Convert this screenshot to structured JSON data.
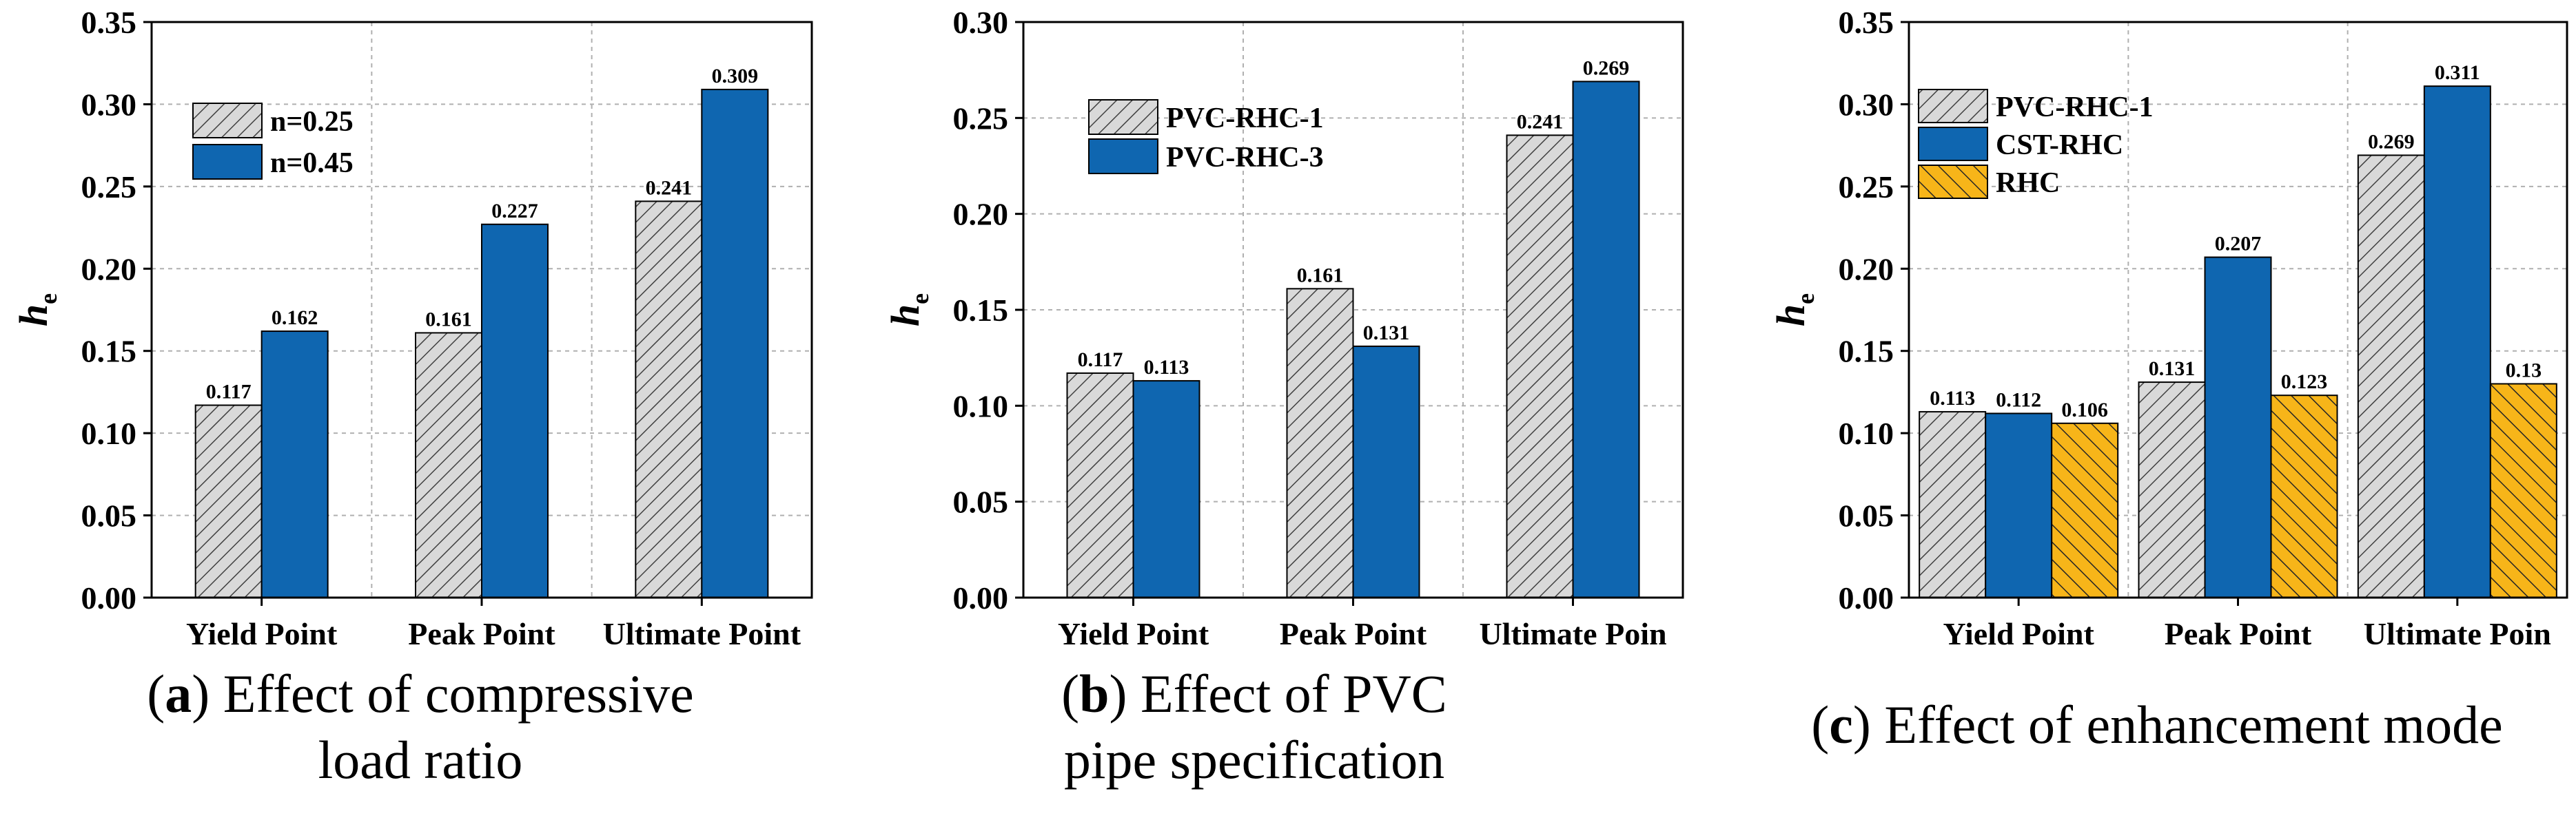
{
  "colors": {
    "hatch_bg": "#d9d9d9",
    "hatch_line": "#404040",
    "blue": "#0f66b0",
    "orange": "#f7b519",
    "orange_line": "#262626",
    "grid": "#b0b0b0"
  },
  "chart_data": [
    {
      "type": "bar",
      "ylabel": "h",
      "ylabel_sub": "e",
      "ylim": [
        0,
        0.35
      ],
      "yticks": [
        "0.00",
        "0.05",
        "0.10",
        "0.15",
        "0.20",
        "0.25",
        "0.30",
        "0.35"
      ],
      "categories": [
        "Yield Point",
        "Peak Point",
        "Ultimate Point"
      ],
      "series": [
        {
          "name": "n=0.25",
          "style": "gray-hatch",
          "values": [
            0.117,
            0.161,
            0.241
          ],
          "labels": [
            "0.117",
            "0.161",
            "0.241"
          ]
        },
        {
          "name": "n=0.45",
          "style": "blue",
          "values": [
            0.162,
            0.227,
            0.309
          ],
          "labels": [
            "0.162",
            "0.227",
            "0.309"
          ]
        }
      ],
      "legend_position": "top-left",
      "caption": {
        "letter": "a",
        "line1": " Effect of compressive",
        "line2": "load ratio"
      }
    },
    {
      "type": "bar",
      "ylabel": "h",
      "ylabel_sub": "e",
      "ylim": [
        0,
        0.3
      ],
      "yticks": [
        "0.00",
        "0.05",
        "0.10",
        "0.15",
        "0.20",
        "0.25",
        "0.30"
      ],
      "categories": [
        "Yield Point",
        "Peak Point",
        "Ultimate Poin"
      ],
      "series": [
        {
          "name": "PVC-RHC-1",
          "style": "gray-hatch",
          "values": [
            0.117,
            0.161,
            0.241
          ],
          "labels": [
            "0.117",
            "0.161",
            "0.241"
          ]
        },
        {
          "name": "PVC-RHC-3",
          "style": "blue",
          "values": [
            0.113,
            0.131,
            0.269
          ],
          "labels": [
            "0.113",
            "0.131",
            "0.269"
          ]
        }
      ],
      "legend_position": "top-left",
      "caption": {
        "letter": "b",
        "line1": " Effect of PVC",
        "line2": "pipe specification"
      }
    },
    {
      "type": "bar",
      "ylabel": "h",
      "ylabel_sub": "e",
      "ylim": [
        0,
        0.35
      ],
      "yticks": [
        "0.00",
        "0.05",
        "0.10",
        "0.15",
        "0.20",
        "0.25",
        "0.30",
        "0.35"
      ],
      "categories": [
        "Yield Point",
        "Peak Point",
        "Ultimate Poin"
      ],
      "series": [
        {
          "name": "PVC-RHC-1",
          "style": "gray-hatch",
          "values": [
            0.113,
            0.131,
            0.269
          ],
          "labels": [
            "0.113",
            "0.131",
            "0.269"
          ]
        },
        {
          "name": "CST-RHC",
          "style": "blue",
          "values": [
            0.112,
            0.207,
            0.311
          ],
          "labels": [
            "0.112",
            "0.207",
            "0.311"
          ]
        },
        {
          "name": "RHC",
          "style": "orange-hatch",
          "values": [
            0.106,
            0.123,
            0.13
          ],
          "labels": [
            "0.106",
            "0.123",
            "0.13"
          ]
        }
      ],
      "legend_position": "top-left",
      "caption": {
        "letter": "c",
        "line1": " Effect of enhancement mode",
        "line2": ""
      }
    }
  ]
}
